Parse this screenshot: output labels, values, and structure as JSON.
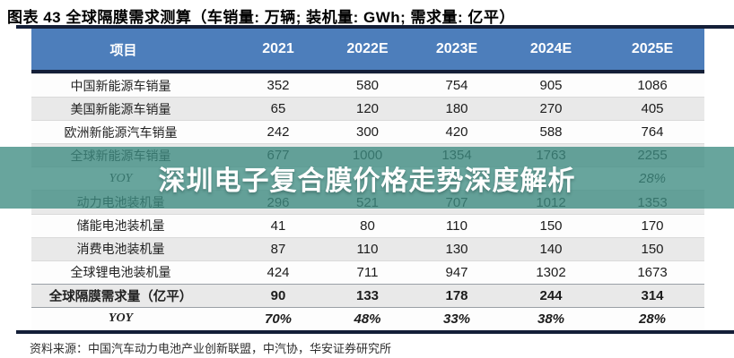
{
  "title": "图表 43 全球隔膜需求测算（车销量: 万辆; 装机量: GWh; 需求量: 亿平）",
  "table": {
    "header": {
      "item": "项目",
      "cols": [
        "2021",
        "2022E",
        "2023E",
        "2024E",
        "2025E"
      ]
    },
    "rows": [
      {
        "label": "中国新能源车销量",
        "values": [
          "352",
          "580",
          "754",
          "905",
          "1086"
        ]
      },
      {
        "label": "美国新能源车销量",
        "values": [
          "65",
          "120",
          "180",
          "270",
          "405"
        ]
      },
      {
        "label": "欧洲新能源汽车销量",
        "values": [
          "242",
          "300",
          "420",
          "588",
          "764"
        ]
      },
      {
        "label": "全球新能源车销量",
        "values": [
          "677",
          "1000",
          "1354",
          "1763",
          "2255"
        ]
      },
      {
        "label": "YOY",
        "values": [
          "",
          "",
          "",
          "",
          "28%"
        ]
      },
      {
        "label": "动力电池装机量",
        "values": [
          "296",
          "521",
          "707",
          "1012",
          "1353"
        ]
      },
      {
        "label": "储能电池装机量",
        "values": [
          "41",
          "80",
          "110",
          "150",
          "170"
        ]
      },
      {
        "label": "消费电池装机量",
        "values": [
          "87",
          "110",
          "130",
          "140",
          "150"
        ]
      },
      {
        "label": "全球锂电池装机量",
        "values": [
          "424",
          "711",
          "947",
          "1302",
          "1673"
        ]
      },
      {
        "label": "全球隔膜需求量（亿平）",
        "values": [
          "90",
          "133",
          "178",
          "244",
          "314"
        ]
      },
      {
        "label": "YOY",
        "values": [
          "70%",
          "48%",
          "33%",
          "38%",
          "28%"
        ]
      }
    ]
  },
  "watermark": {
    "text": "深圳电子复合膜价格走势深度解析",
    "band_color": "#3e8c82"
  },
  "source": "资料来源：中国汽车动力电池产业创新联盟，中汽协，华安证券研究所",
  "colors": {
    "header_bg": "#4d7ebb",
    "header_text": "#ffffff",
    "dark_rule": "#141f38",
    "stripe": "#e9e9e9",
    "body_text": "#1c1c1c"
  },
  "chart_data": {
    "type": "table",
    "title": "全球隔膜需求测算",
    "units": {
      "车销量": "万辆",
      "装机量": "GWh",
      "需求量": "亿平"
    },
    "categories": [
      "2021",
      "2022E",
      "2023E",
      "2024E",
      "2025E"
    ],
    "series": [
      {
        "name": "中国新能源车销量",
        "values": [
          352,
          580,
          754,
          905,
          1086
        ]
      },
      {
        "name": "美国新能源车销量",
        "values": [
          65,
          120,
          180,
          270,
          405
        ]
      },
      {
        "name": "欧洲新能源汽车销量",
        "values": [
          242,
          300,
          420,
          588,
          764
        ]
      },
      {
        "name": "全球新能源车销量",
        "values": [
          677,
          1000,
          1354,
          1763,
          2255
        ]
      },
      {
        "name": "动力电池装机量",
        "values": [
          296,
          521,
          707,
          1012,
          1353
        ]
      },
      {
        "name": "储能电池装机量",
        "values": [
          41,
          80,
          110,
          150,
          170
        ]
      },
      {
        "name": "消费电池装机量",
        "values": [
          87,
          110,
          130,
          140,
          150
        ]
      },
      {
        "name": "全球锂电池装机量",
        "values": [
          424,
          711,
          947,
          1302,
          1673
        ]
      },
      {
        "name": "全球隔膜需求量（亿平）",
        "values": [
          90,
          133,
          178,
          244,
          314
        ]
      },
      {
        "name": "全球隔膜需求量YOY",
        "values": [
          "70%",
          "48%",
          "33%",
          "38%",
          "28%"
        ]
      }
    ]
  }
}
